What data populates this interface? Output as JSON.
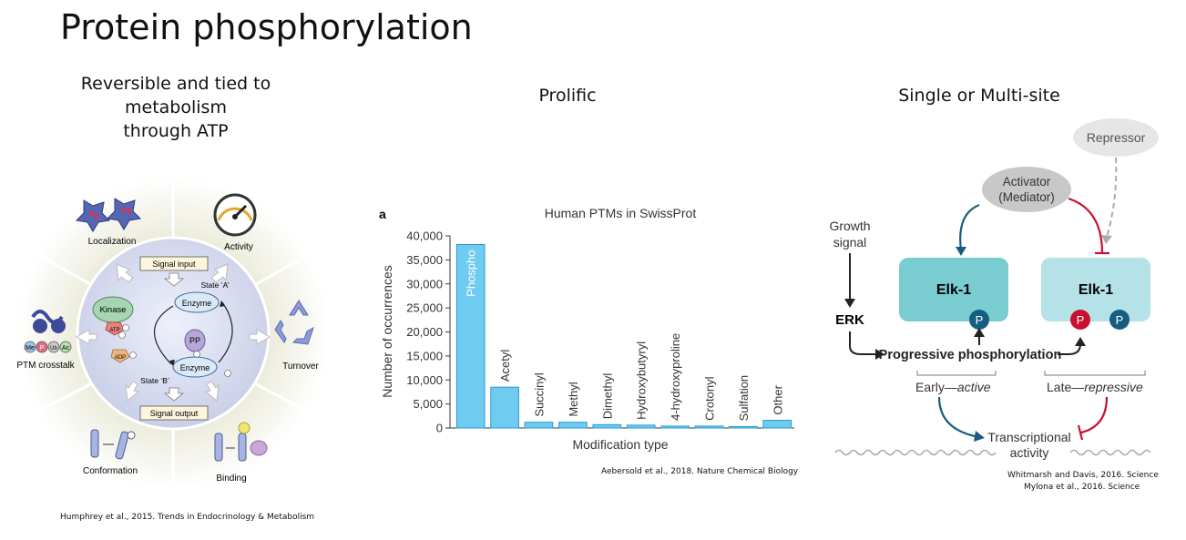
{
  "slide": {
    "title": "Protein phosphorylation",
    "left_heading": [
      "Reversible and tied to metabolism",
      "through ATP"
    ],
    "middle_heading": "Prolific",
    "right_heading": "Single or Multi-site",
    "left_citation": "Humphrey et al., 2015. Trends in Endocrinology & Metabolism",
    "middle_citation": "Aebersold et al., 2018. Nature Chemical Biology",
    "right_citation_1": "Whitmarsh and Davis, 2016. Science",
    "right_citation_2": "Mylona et al., 2016. Science"
  },
  "wheel": {
    "localization": "Localization",
    "activity": "Activity",
    "turnover": "Turnover",
    "binding": "Binding",
    "conformation": "Conformation",
    "ptm_crosstalk": "PTM crosstalk",
    "signal_input": "Signal input",
    "signal_output": "Signal output",
    "state_a": "State ‘A’",
    "state_b": "State ‘B’",
    "enzyme": "Enzyme",
    "kinase": "Kinase",
    "pp": "PP",
    "atp": "ATP",
    "adp": "ADP",
    "p": "P",
    "me": "Me",
    "ub": "Ub",
    "ac": "Ac"
  },
  "chart_data": {
    "type": "bar",
    "panel_label": "a",
    "title": "Human PTMs in SwissProt",
    "xlabel": "Modification type",
    "ylabel": "Number of occurrences",
    "ylim": [
      0,
      40000
    ],
    "yticks": [
      "0",
      "5,000",
      "10,000",
      "15,000",
      "20,000",
      "25,000",
      "30,000",
      "35,000",
      "40,000"
    ],
    "categories": [
      "Phospho",
      "Acetyl",
      "Succinyl",
      "Methyl",
      "Dimethyl",
      "Hydroxybutyryl",
      "4-hydroxyproline",
      "Crotonyl",
      "Sulfation",
      "Other"
    ],
    "values": [
      38200,
      8500,
      1200,
      1200,
      700,
      600,
      400,
      400,
      300,
      1600
    ],
    "colors": {
      "bar": "#6fcbef",
      "bar_edge": "#2a9bd0"
    }
  },
  "elk": {
    "repressor": "Repressor",
    "activator_1": "Activator",
    "activator_2": "(Mediator)",
    "growth_1": "Growth",
    "growth_2": "signal",
    "erk": "ERK",
    "elk1": "Elk-1",
    "progressive": "Progressive phosphorylation",
    "early_prefix": "Early—",
    "early_em": "active",
    "late_prefix": "Late—",
    "late_em": "repressive",
    "transcriptional_1": "Transcriptional",
    "transcriptional_2": "activity",
    "p": "P",
    "colors": {
      "elk_active": "#79ccd0",
      "elk_late": "#b5e1e8",
      "p_blue": "#165e7f",
      "p_red": "#c8102e",
      "activator": "#c8c8c8",
      "repressor": "#e6e6e6"
    }
  }
}
